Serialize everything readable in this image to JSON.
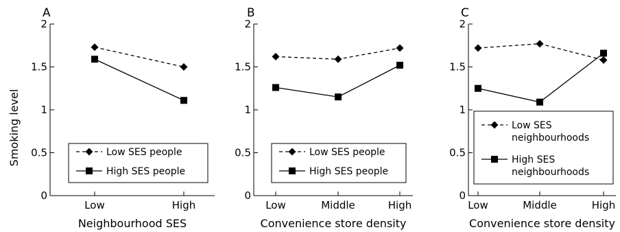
{
  "figure": {
    "ylabel": "Smoking level"
  },
  "chart_data": [
    {
      "type": "line",
      "panel": "A",
      "title": "",
      "xlabel": "Neighbourhood SES",
      "ylabel": "Smoking level",
      "ylim": [
        0,
        2
      ],
      "yticks": [
        "0",
        "0.5",
        "1",
        "1.5",
        "2"
      ],
      "categories": [
        "Low",
        "High"
      ],
      "series": [
        {
          "name": "Low SES people",
          "marker": "diamond",
          "dash": true,
          "values": [
            1.73,
            1.5
          ]
        },
        {
          "name": "High SES people",
          "marker": "square",
          "dash": false,
          "values": [
            1.59,
            1.11
          ]
        }
      ],
      "legend": "bottom-right",
      "legend_lines": [
        [
          "Low SES people"
        ],
        [
          "High SES people"
        ]
      ],
      "grid": false
    },
    {
      "type": "line",
      "panel": "B",
      "title": "",
      "xlabel": "Convenience store density",
      "ylabel": "",
      "ylim": [
        0,
        2
      ],
      "yticks": [
        "0",
        "0.5",
        "1",
        "1.5",
        "2"
      ],
      "categories": [
        "Low",
        "Middle",
        "High"
      ],
      "series": [
        {
          "name": "Low SES people",
          "marker": "diamond",
          "dash": true,
          "values": [
            1.62,
            1.59,
            1.72
          ]
        },
        {
          "name": "High SES people",
          "marker": "square",
          "dash": false,
          "values": [
            1.26,
            1.15,
            1.52
          ]
        }
      ],
      "legend": "bottom-right",
      "legend_lines": [
        [
          "Low SES people"
        ],
        [
          "High SES people"
        ]
      ],
      "grid": false
    },
    {
      "type": "line",
      "panel": "C",
      "title": "",
      "xlabel": "Convenience store density",
      "ylabel": "",
      "ylim": [
        0,
        2
      ],
      "yticks": [
        "0",
        "0.5",
        "1",
        "1.5",
        "2"
      ],
      "categories": [
        "Low",
        "Middle",
        "High"
      ],
      "series": [
        {
          "name": "Low SES neighbourhoods",
          "marker": "diamond",
          "dash": true,
          "values": [
            1.72,
            1.77,
            1.58
          ]
        },
        {
          "name": "High SES neighbourhoods",
          "marker": "square",
          "dash": false,
          "values": [
            1.25,
            1.09,
            1.66
          ]
        }
      ],
      "legend": "bottom-right",
      "legend_lines": [
        [
          "Low SES",
          "neighbourhoods"
        ],
        [
          "High SES",
          "neighbourhoods"
        ]
      ],
      "grid": false
    }
  ]
}
